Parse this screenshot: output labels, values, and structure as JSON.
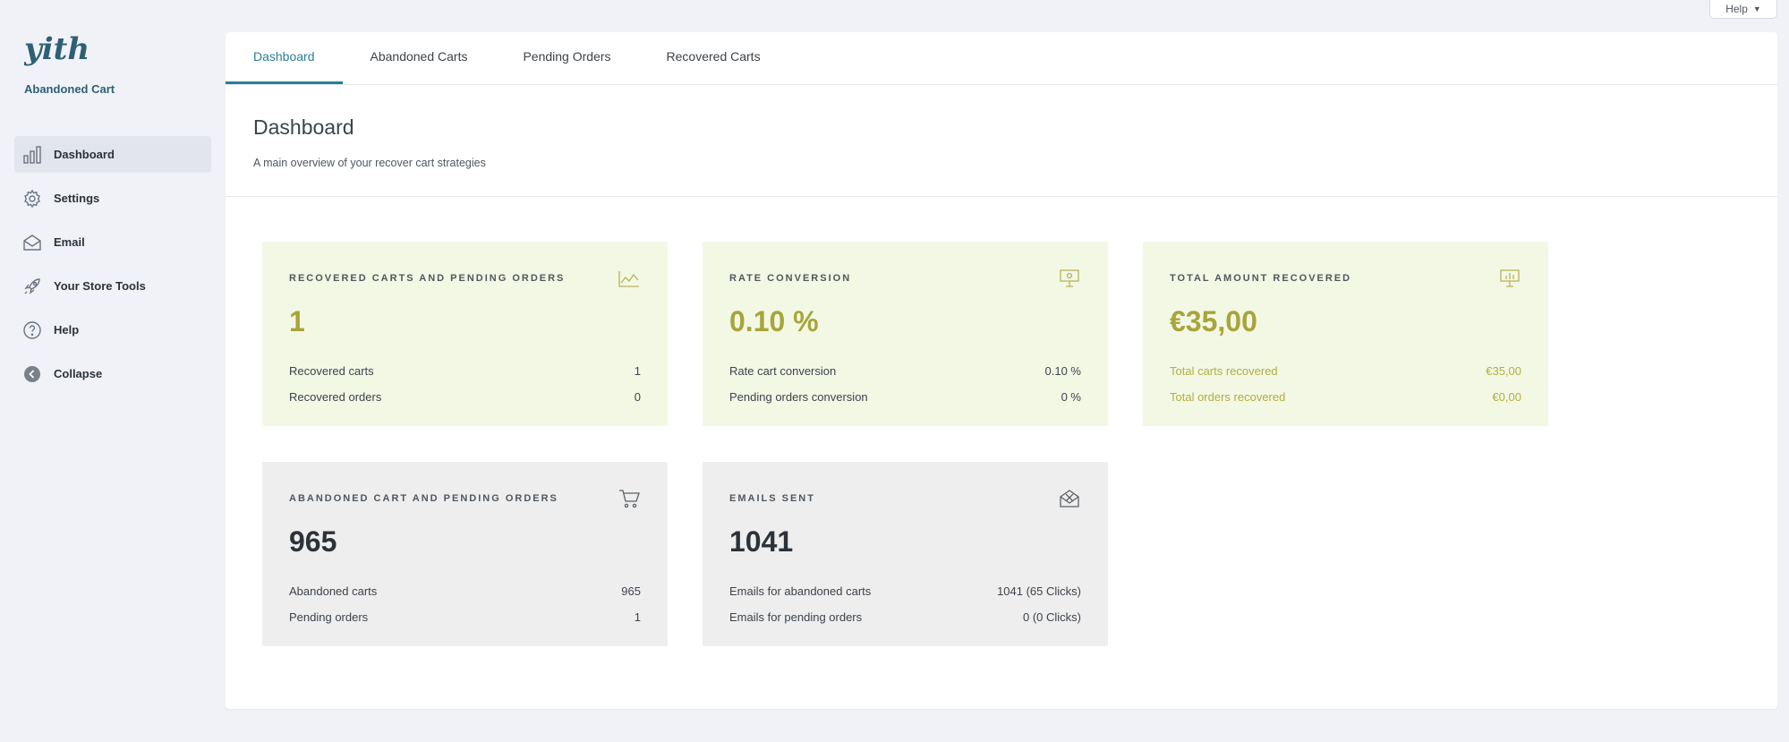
{
  "help": {
    "label": "Help",
    "caret": "▼"
  },
  "sidebar": {
    "logo_text": "yith",
    "subtitle": "Abandoned Cart",
    "items": [
      {
        "label": "Dashboard",
        "icon": "bar-chart-icon",
        "active": true
      },
      {
        "label": "Settings",
        "icon": "gear-icon"
      },
      {
        "label": "Email",
        "icon": "envelope-icon"
      },
      {
        "label": "Your Store Tools",
        "icon": "rocket-icon"
      },
      {
        "label": "Help",
        "icon": "question-icon"
      },
      {
        "label": "Collapse",
        "icon": "collapse-arrow-icon"
      }
    ]
  },
  "tabs": [
    {
      "label": "Dashboard",
      "active": true
    },
    {
      "label": "Abandoned Carts"
    },
    {
      "label": "Pending Orders"
    },
    {
      "label": "Recovered Carts"
    }
  ],
  "page": {
    "title": "Dashboard",
    "description": "A main overview of your recover cart strategies"
  },
  "cards": [
    {
      "title": "RECOVERED CARTS AND PENDING ORDERS",
      "icon": "line-chart-icon",
      "value": "1",
      "rows": [
        {
          "label": "Recovered carts",
          "value": "1"
        },
        {
          "label": "Recovered orders",
          "value": "0"
        }
      ]
    },
    {
      "title": "RATE CONVERSION",
      "icon": "presentation-icon",
      "value": "0.10 %",
      "rows": [
        {
          "label": "Rate cart conversion",
          "value": "0.10 %"
        },
        {
          "label": "Pending orders conversion",
          "value": "0 %"
        }
      ]
    },
    {
      "title": "TOTAL AMOUNT RECOVERED",
      "icon": "board-chart-icon",
      "value": "€35,00",
      "rows": [
        {
          "label": "Total carts recovered",
          "value": "€35,00"
        },
        {
          "label": "Total orders recovered",
          "value": "€0,00"
        }
      ]
    },
    {
      "title": "ABANDONED CART AND PENDING ORDERS",
      "icon": "cart-icon",
      "value": "965",
      "rows": [
        {
          "label": "Abandoned carts",
          "value": "965"
        },
        {
          "label": "Pending orders",
          "value": "1"
        }
      ]
    },
    {
      "title": "EMAILS SENT",
      "icon": "open-envelope-icon",
      "value": "1041",
      "rows": [
        {
          "label": "Emails for abandoned carts",
          "value": "1041 (65 Clicks)"
        },
        {
          "label": "Emails for pending orders",
          "value": "0 (0 Clicks)"
        }
      ]
    }
  ],
  "colors": {
    "accent": "#2a7f95",
    "green_card": "#f3f8e5",
    "gray_card": "#eeeeee",
    "olive_value": "#a8a53a"
  }
}
